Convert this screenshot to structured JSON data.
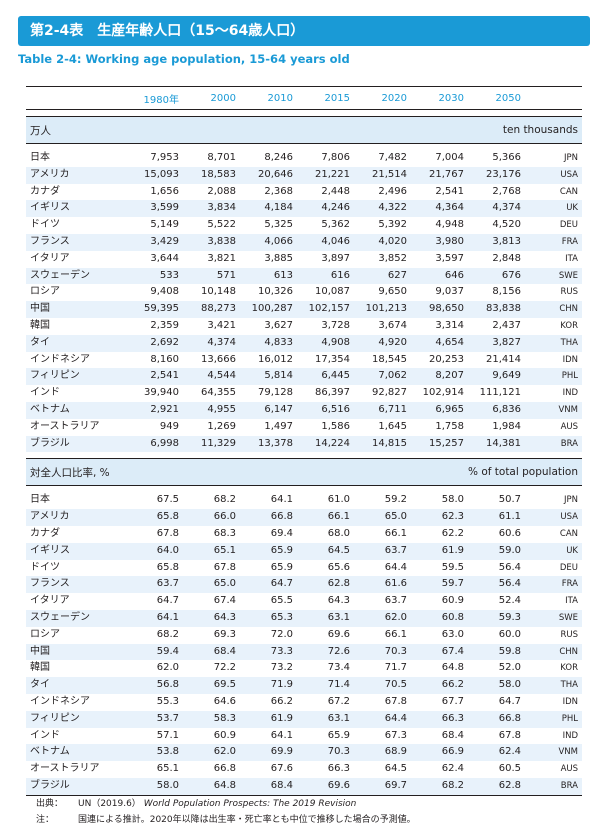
{
  "title": "第2-4表　生産年齢人口（15～64歳人口）",
  "subtitle": "Table 2-4: Working age population, 15-64 years old",
  "years": [
    "1980年",
    "2000",
    "2010",
    "2015",
    "2020",
    "2030",
    "2050"
  ],
  "sections": [
    {
      "label_ja": "万人",
      "label_en": "ten thousands",
      "rows": [
        {
          "name": "日本",
          "code": "JPN",
          "v": [
            "7,953",
            "8,701",
            "8,246",
            "7,806",
            "7,482",
            "7,004",
            "5,366"
          ]
        },
        {
          "name": "アメリカ",
          "code": "USA",
          "v": [
            "15,093",
            "18,583",
            "20,646",
            "21,221",
            "21,514",
            "21,767",
            "23,176"
          ]
        },
        {
          "name": "カナダ",
          "code": "CAN",
          "v": [
            "1,656",
            "2,088",
            "2,368",
            "2,448",
            "2,496",
            "2,541",
            "2,768"
          ]
        },
        {
          "name": "イギリス",
          "code": "UK",
          "v": [
            "3,599",
            "3,834",
            "4,184",
            "4,246",
            "4,322",
            "4,364",
            "4,374"
          ]
        },
        {
          "name": "ドイツ",
          "code": "DEU",
          "v": [
            "5,149",
            "5,522",
            "5,325",
            "5,362",
            "5,392",
            "4,948",
            "4,520"
          ]
        },
        {
          "name": "フランス",
          "code": "FRA",
          "v": [
            "3,429",
            "3,838",
            "4,066",
            "4,046",
            "4,020",
            "3,980",
            "3,813"
          ]
        },
        {
          "name": "イタリア",
          "code": "ITA",
          "v": [
            "3,644",
            "3,821",
            "3,885",
            "3,897",
            "3,852",
            "3,597",
            "2,848"
          ]
        },
        {
          "name": "スウェーデン",
          "code": "SWE",
          "v": [
            "533",
            "571",
            "613",
            "616",
            "627",
            "646",
            "676"
          ]
        },
        {
          "name": "ロシア",
          "code": "RUS",
          "v": [
            "9,408",
            "10,148",
            "10,326",
            "10,087",
            "9,650",
            "9,037",
            "8,156"
          ]
        },
        {
          "name": "中国",
          "code": "CHN",
          "v": [
            "59,395",
            "88,273",
            "100,287",
            "102,157",
            "101,213",
            "98,650",
            "83,838"
          ]
        },
        {
          "name": "韓国",
          "code": "KOR",
          "v": [
            "2,359",
            "3,421",
            "3,627",
            "3,728",
            "3,674",
            "3,314",
            "2,437"
          ]
        },
        {
          "name": "タイ",
          "code": "THA",
          "v": [
            "2,692",
            "4,374",
            "4,833",
            "4,908",
            "4,920",
            "4,654",
            "3,827"
          ]
        },
        {
          "name": "インドネシア",
          "code": "IDN",
          "v": [
            "8,160",
            "13,666",
            "16,012",
            "17,354",
            "18,545",
            "20,253",
            "21,414"
          ]
        },
        {
          "name": "フィリピン",
          "code": "PHL",
          "v": [
            "2,541",
            "4,544",
            "5,814",
            "6,445",
            "7,062",
            "8,207",
            "9,649"
          ]
        },
        {
          "name": "インド",
          "code": "IND",
          "v": [
            "39,940",
            "64,355",
            "79,128",
            "86,397",
            "92,827",
            "102,914",
            "111,121"
          ]
        },
        {
          "name": "ベトナム",
          "code": "VNM",
          "v": [
            "2,921",
            "4,955",
            "6,147",
            "6,516",
            "6,711",
            "6,965",
            "6,836"
          ]
        },
        {
          "name": "オーストラリア",
          "code": "AUS",
          "v": [
            "949",
            "1,269",
            "1,497",
            "1,586",
            "1,645",
            "1,758",
            "1,984"
          ]
        },
        {
          "name": "ブラジル",
          "code": "BRA",
          "v": [
            "6,998",
            "11,329",
            "13,378",
            "14,224",
            "14,815",
            "15,257",
            "14,381"
          ]
        }
      ]
    },
    {
      "label_ja": "対全人口比率, %",
      "label_en": "% of total population",
      "rows": [
        {
          "name": "日本",
          "code": "JPN",
          "v": [
            "67.5",
            "68.2",
            "64.1",
            "61.0",
            "59.2",
            "58.0",
            "50.7"
          ]
        },
        {
          "name": "アメリカ",
          "code": "USA",
          "v": [
            "65.8",
            "66.0",
            "66.8",
            "66.1",
            "65.0",
            "62.3",
            "61.1"
          ]
        },
        {
          "name": "カナダ",
          "code": "CAN",
          "v": [
            "67.8",
            "68.3",
            "69.4",
            "68.0",
            "66.1",
            "62.2",
            "60.6"
          ]
        },
        {
          "name": "イギリス",
          "code": "UK",
          "v": [
            "64.0",
            "65.1",
            "65.9",
            "64.5",
            "63.7",
            "61.9",
            "59.0"
          ]
        },
        {
          "name": "ドイツ",
          "code": "DEU",
          "v": [
            "65.8",
            "67.8",
            "65.9",
            "65.6",
            "64.4",
            "59.5",
            "56.4"
          ]
        },
        {
          "name": "フランス",
          "code": "FRA",
          "v": [
            "63.7",
            "65.0",
            "64.7",
            "62.8",
            "61.6",
            "59.7",
            "56.4"
          ]
        },
        {
          "name": "イタリア",
          "code": "ITA",
          "v": [
            "64.7",
            "67.4",
            "65.5",
            "64.3",
            "63.7",
            "60.9",
            "52.4"
          ]
        },
        {
          "name": "スウェーデン",
          "code": "SWE",
          "v": [
            "64.1",
            "64.3",
            "65.3",
            "63.1",
            "62.0",
            "60.8",
            "59.3"
          ]
        },
        {
          "name": "ロシア",
          "code": "RUS",
          "v": [
            "68.2",
            "69.3",
            "72.0",
            "69.6",
            "66.1",
            "63.0",
            "60.0"
          ]
        },
        {
          "name": "中国",
          "code": "CHN",
          "v": [
            "59.4",
            "68.4",
            "73.3",
            "72.6",
            "70.3",
            "67.4",
            "59.8"
          ]
        },
        {
          "name": "韓国",
          "code": "KOR",
          "v": [
            "62.0",
            "72.2",
            "73.2",
            "73.4",
            "71.7",
            "64.8",
            "52.0"
          ]
        },
        {
          "name": "タイ",
          "code": "THA",
          "v": [
            "56.8",
            "69.5",
            "71.9",
            "71.4",
            "70.5",
            "66.2",
            "58.0"
          ]
        },
        {
          "name": "インドネシア",
          "code": "IDN",
          "v": [
            "55.3",
            "64.6",
            "66.2",
            "67.2",
            "67.8",
            "67.7",
            "64.7"
          ]
        },
        {
          "name": "フィリピン",
          "code": "PHL",
          "v": [
            "53.7",
            "58.3",
            "61.9",
            "63.1",
            "64.4",
            "66.3",
            "66.8"
          ]
        },
        {
          "name": "インド",
          "code": "IND",
          "v": [
            "57.1",
            "60.9",
            "64.1",
            "65.9",
            "67.3",
            "68.4",
            "67.8"
          ]
        },
        {
          "name": "ベトナム",
          "code": "VNM",
          "v": [
            "53.8",
            "62.0",
            "69.9",
            "70.3",
            "68.9",
            "66.9",
            "62.4"
          ]
        },
        {
          "name": "オーストラリア",
          "code": "AUS",
          "v": [
            "65.1",
            "66.8",
            "67.6",
            "66.3",
            "64.5",
            "62.4",
            "60.5"
          ]
        },
        {
          "name": "ブラジル",
          "code": "BRA",
          "v": [
            "58.0",
            "64.8",
            "68.4",
            "69.6",
            "69.7",
            "68.2",
            "62.8"
          ]
        }
      ]
    }
  ],
  "notes": {
    "source_label": "出典：",
    "source_org": "UN（2019.6）",
    "source_title": "World Population Prospects: The 2019 Revision",
    "note_label": "注：",
    "note_text": "国連による推計。2020年以降は出生率・死亡率とも中位で推移した場合の予測値。"
  }
}
